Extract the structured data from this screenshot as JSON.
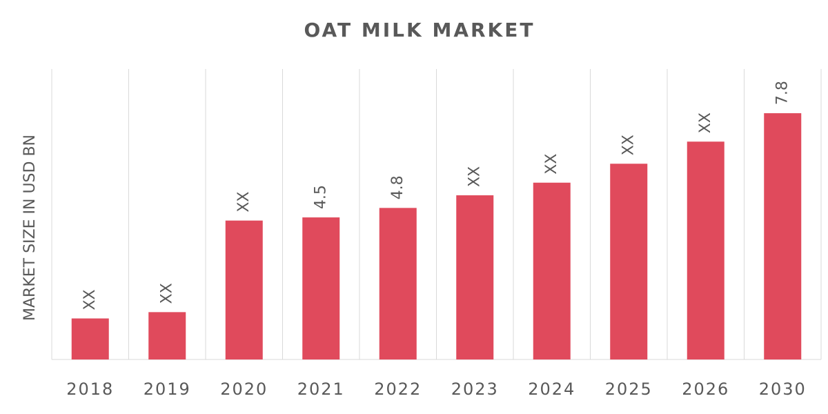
{
  "chart_data": {
    "type": "bar",
    "title": "OAT MILK MARKET",
    "y_label": "MARKET SIZE IN USD BN",
    "categories": [
      "2018",
      "2019",
      "2020",
      "2021",
      "2022",
      "2023",
      "2024",
      "2025",
      "2026",
      "2030"
    ],
    "values": [
      1.3,
      1.5,
      4.4,
      4.5,
      4.8,
      5.2,
      5.6,
      6.2,
      6.9,
      7.8
    ],
    "value_labels": [
      "XX",
      "XX",
      "XX",
      "4.5",
      "4.8",
      "XX",
      "XX",
      "XX",
      "XX",
      "7.8"
    ],
    "color": "#e04a5c",
    "ylim": [
      0,
      9.2
    ],
    "grid": true
  }
}
